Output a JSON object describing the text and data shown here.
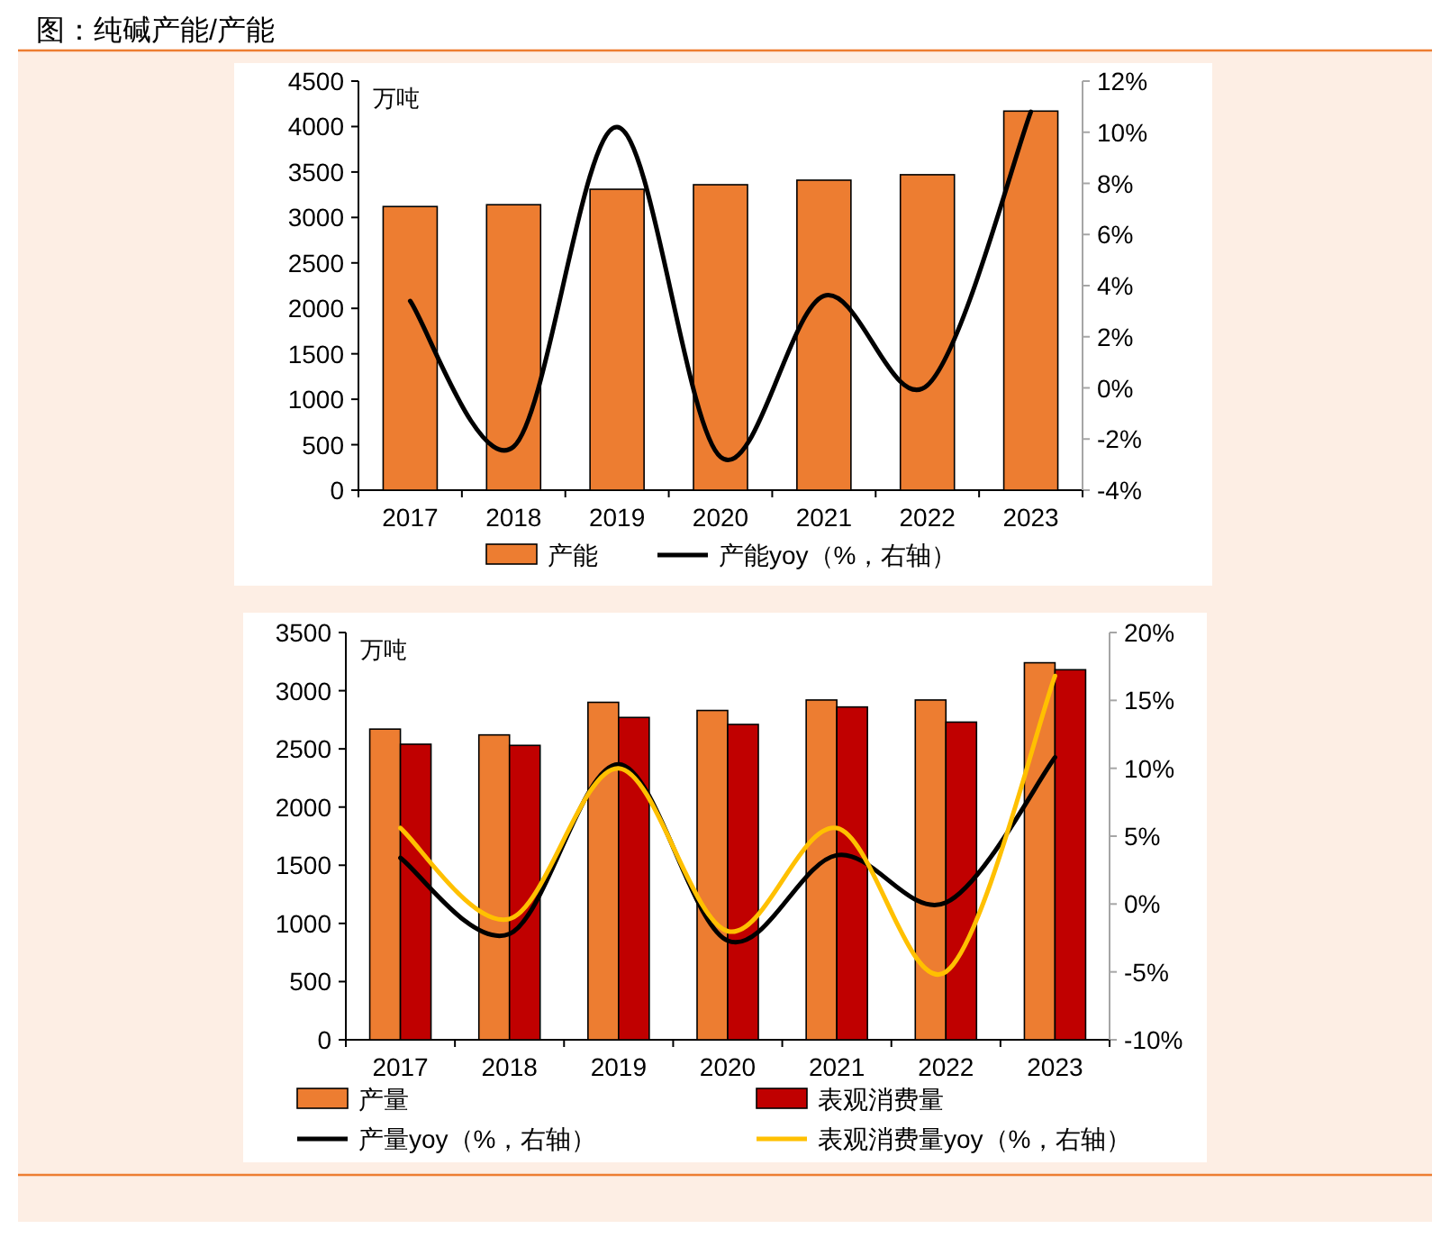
{
  "chart_data": [
    {
      "type": "bar",
      "title": "图：纯碱产能/产能",
      "ylabel": "万吨",
      "categories": [
        "2017",
        "2018",
        "2019",
        "2020",
        "2021",
        "2022",
        "2023"
      ],
      "series": [
        {
          "name": "产能",
          "color": "#ed7d31",
          "values": [
            3120,
            3140,
            3310,
            3360,
            3410,
            3470,
            4170
          ]
        },
        {
          "name": "产能yoy（%，右轴）",
          "type": "line",
          "axis": "y2",
          "color": "#000000",
          "values": [
            3.4,
            -2.3,
            10.2,
            -2.7,
            3.6,
            0.1,
            10.8
          ]
        }
      ],
      "ylim": [
        0,
        4500
      ],
      "yticks": [
        0,
        500,
        1000,
        1500,
        2000,
        2500,
        3000,
        3500,
        4000,
        4500
      ],
      "y2lim": [
        -4,
        12
      ],
      "y2ticks": [
        {
          "value": -4,
          "label": "-4%"
        },
        {
          "value": -2,
          "label": "-2%"
        },
        {
          "value": 0,
          "label": "0%"
        },
        {
          "value": 2,
          "label": "2%"
        },
        {
          "value": 4,
          "label": "4%"
        },
        {
          "value": 6,
          "label": "6%"
        },
        {
          "value": 8,
          "label": "8%"
        },
        {
          "value": 10,
          "label": "10%"
        },
        {
          "value": 12,
          "label": "12%"
        }
      ],
      "legend": "bottom",
      "grid": false
    },
    {
      "type": "bar",
      "ylabel": "万吨",
      "categories": [
        "2017",
        "2018",
        "2019",
        "2020",
        "2021",
        "2022",
        "2023"
      ],
      "series": [
        {
          "name": "产量",
          "color": "#ed7d31",
          "values": [
            2670,
            2620,
            2900,
            2830,
            2920,
            2920,
            3240
          ]
        },
        {
          "name": "表观消费量",
          "color": "#c00000",
          "values": [
            2540,
            2530,
            2770,
            2710,
            2860,
            2730,
            3180
          ]
        },
        {
          "name": "产量yoy（%，右轴）",
          "type": "line",
          "axis": "y2",
          "color": "#000000",
          "values": [
            3.4,
            -2.2,
            10.3,
            -2.7,
            3.6,
            0.1,
            10.8
          ]
        },
        {
          "name": "表观消费量yoy（%，右轴）",
          "type": "line",
          "axis": "y2",
          "color": "#ffc000",
          "values": [
            5.6,
            -1.1,
            10.0,
            -2.0,
            5.6,
            -5.0,
            16.8
          ]
        }
      ],
      "ylim": [
        0,
        3500
      ],
      "yticks": [
        0,
        500,
        1000,
        1500,
        2000,
        2500,
        3000,
        3500
      ],
      "y2lim": [
        -10,
        20
      ],
      "y2ticks": [
        {
          "value": -10,
          "label": "-10%"
        },
        {
          "value": -5,
          "label": "-5%"
        },
        {
          "value": 0,
          "label": "0%"
        },
        {
          "value": 5,
          "label": "5%"
        },
        {
          "value": 10,
          "label": "10%"
        },
        {
          "value": 15,
          "label": "15%"
        },
        {
          "value": 20,
          "label": "20%"
        }
      ],
      "legend": "bottom",
      "grid": false
    }
  ]
}
